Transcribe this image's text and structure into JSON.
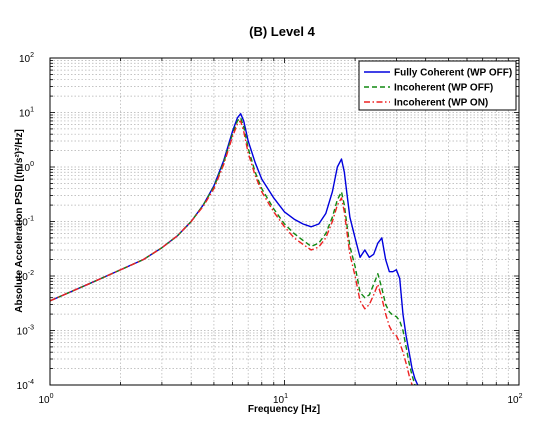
{
  "chart_data": {
    "type": "line",
    "title": "(B) Level 4",
    "xlabel": "Frequency [Hz]",
    "ylabel": "Absolute Acceleration PSD [(m/s²)²/Hz]",
    "x_scale": "log",
    "y_scale": "log",
    "xlim": [
      1,
      100
    ],
    "ylim": [
      0.0001,
      100
    ],
    "grid": true,
    "legend_position": "top-right",
    "x_ticks": [
      {
        "base": "10",
        "exp": "0"
      },
      {
        "base": "10",
        "exp": "1"
      },
      {
        "base": "10",
        "exp": "2"
      }
    ],
    "y_ticks": [
      {
        "base": "10",
        "exp": "-4"
      },
      {
        "base": "10",
        "exp": "-3"
      },
      {
        "base": "10",
        "exp": "-2"
      },
      {
        "base": "10",
        "exp": "-1"
      },
      {
        "base": "10",
        "exp": "0"
      },
      {
        "base": "10",
        "exp": "1"
      },
      {
        "base": "10",
        "exp": "2"
      }
    ],
    "series": [
      {
        "name": "Fully Coherent (WP OFF)",
        "color": "#0000dd",
        "dash": "solid",
        "x": [
          1,
          1.5,
          2,
          2.5,
          3,
          3.5,
          4,
          4.5,
          5,
          5.5,
          6,
          6.3,
          6.5,
          6.7,
          7,
          7.5,
          8,
          9,
          10,
          11,
          12,
          13,
          14,
          15,
          16,
          16.8,
          17.5,
          18,
          18.5,
          19,
          20,
          21,
          22,
          23,
          24,
          25,
          26,
          27,
          28,
          29,
          30,
          31,
          32,
          33,
          34,
          35,
          36,
          37,
          38
        ],
        "y": [
          0.0035,
          0.0075,
          0.013,
          0.02,
          0.033,
          0.055,
          0.1,
          0.2,
          0.45,
          1.3,
          4.5,
          8,
          9.5,
          7,
          3,
          1.2,
          0.6,
          0.27,
          0.15,
          0.11,
          0.09,
          0.08,
          0.09,
          0.14,
          0.35,
          1.0,
          1.4,
          0.8,
          0.3,
          0.12,
          0.05,
          0.022,
          0.03,
          0.022,
          0.025,
          0.04,
          0.05,
          0.02,
          0.012,
          0.012,
          0.013,
          0.009,
          0.002,
          0.0008,
          0.0004,
          0.0002,
          0.00013,
          0.0001,
          7e-05
        ]
      },
      {
        "name": "Incoherent (WP OFF)",
        "color": "#118811",
        "dash": "dashed",
        "x": [
          1,
          1.5,
          2,
          2.5,
          3,
          3.5,
          4,
          4.5,
          5,
          5.5,
          6,
          6.3,
          6.5,
          6.7,
          7,
          7.5,
          8,
          9,
          10,
          11,
          12,
          13,
          14,
          15,
          16,
          16.8,
          17.5,
          18,
          18.5,
          19,
          20,
          21,
          22,
          23,
          24,
          25,
          26,
          27,
          28,
          29,
          30,
          31,
          32,
          33,
          34,
          35,
          36
        ],
        "y": [
          0.0035,
          0.0075,
          0.013,
          0.02,
          0.033,
          0.055,
          0.1,
          0.2,
          0.43,
          1.2,
          4,
          7,
          8,
          5.5,
          2.2,
          0.8,
          0.4,
          0.17,
          0.09,
          0.06,
          0.045,
          0.035,
          0.04,
          0.06,
          0.12,
          0.25,
          0.35,
          0.2,
          0.08,
          0.035,
          0.015,
          0.005,
          0.004,
          0.0045,
          0.007,
          0.011,
          0.006,
          0.003,
          0.0022,
          0.0019,
          0.0018,
          0.0015,
          0.001,
          0.0005,
          0.00025,
          0.00015,
          0.0001
        ]
      },
      {
        "name": "Incoherent (WP ON)",
        "color": "#ee2222",
        "dash": "dashdot",
        "x": [
          1,
          1.5,
          2,
          2.5,
          3,
          3.5,
          4,
          4.5,
          5,
          5.5,
          6,
          6.3,
          6.5,
          6.7,
          7,
          7.5,
          8,
          9,
          10,
          11,
          12,
          13,
          14,
          15,
          16,
          16.8,
          17.5,
          18,
          18.5,
          19,
          20,
          21,
          22,
          23,
          24,
          25,
          26,
          27,
          28,
          29,
          30,
          31,
          32,
          33,
          34,
          35,
          36
        ],
        "y": [
          0.0035,
          0.0075,
          0.013,
          0.02,
          0.033,
          0.055,
          0.1,
          0.19,
          0.4,
          1.1,
          3.6,
          6.2,
          7,
          4.5,
          1.8,
          0.7,
          0.35,
          0.15,
          0.08,
          0.05,
          0.038,
          0.03,
          0.034,
          0.05,
          0.1,
          0.2,
          0.27,
          0.15,
          0.06,
          0.025,
          0.01,
          0.0035,
          0.0025,
          0.003,
          0.0045,
          0.007,
          0.004,
          0.002,
          0.0012,
          0.0009,
          0.0008,
          0.0006,
          0.0004,
          0.00025,
          0.00015,
          0.0001,
          7e-05
        ]
      }
    ]
  }
}
